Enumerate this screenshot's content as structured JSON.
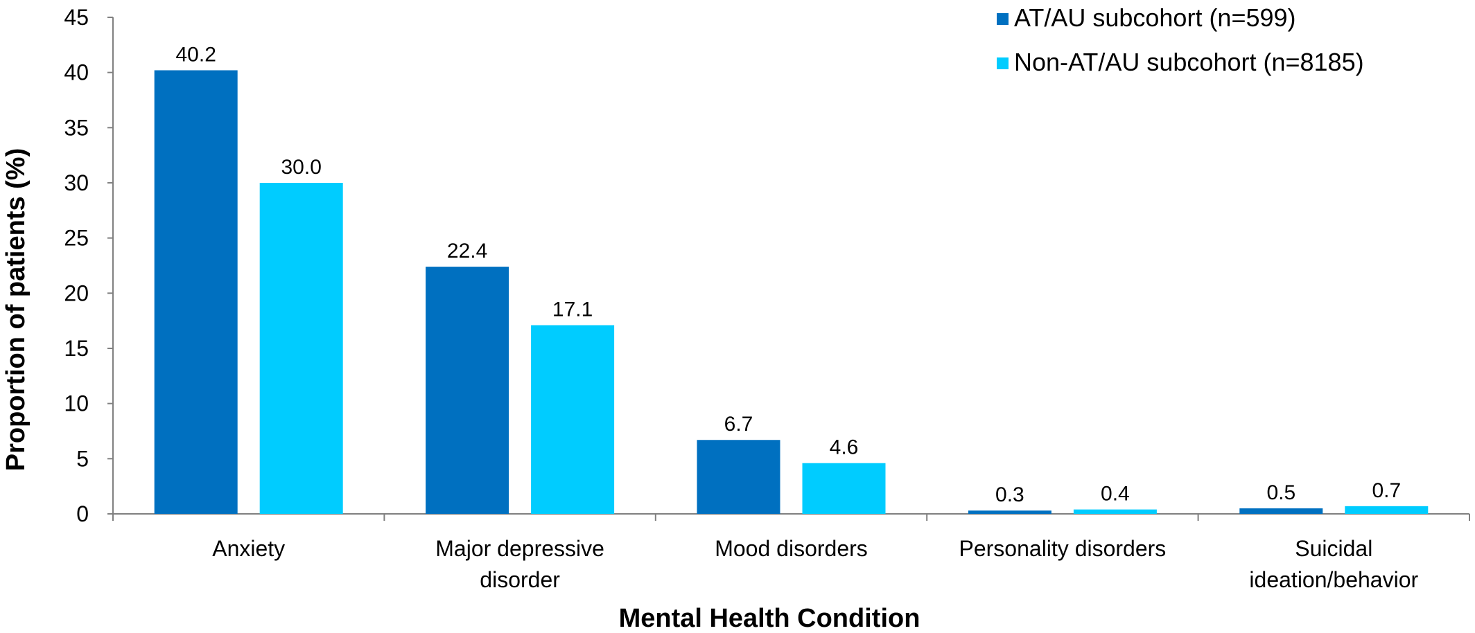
{
  "chart_data": {
    "type": "bar",
    "xlabel": "Mental Health Condition",
    "ylabel": "Proportion of patients (%)",
    "ylim": [
      0,
      45
    ],
    "yticks": [
      0,
      5,
      10,
      15,
      20,
      25,
      30,
      35,
      40,
      45
    ],
    "categories": [
      [
        "Anxiety"
      ],
      [
        "Major depressive",
        "disorder"
      ],
      [
        "Mood disorders"
      ],
      [
        "Personality disorders"
      ],
      [
        "Suicidal",
        "ideation/behavior"
      ]
    ],
    "series": [
      {
        "name": "AT/AU subcohort (n=599)",
        "color": "#0070C0",
        "values": [
          40.2,
          22.4,
          6.7,
          0.3,
          0.5
        ],
        "labels": [
          "40.2",
          "22.4",
          "6.7",
          "0.3",
          "0.5"
        ]
      },
      {
        "name": "Non-AT/AU subcohort (n=8185)",
        "color": "#00CCFF",
        "values": [
          30.0,
          17.1,
          4.6,
          0.4,
          0.7
        ],
        "labels": [
          "30.0",
          "17.1",
          "4.6",
          "0.4",
          "0.7"
        ]
      }
    ],
    "legend_position": "top-right",
    "grid": false
  }
}
